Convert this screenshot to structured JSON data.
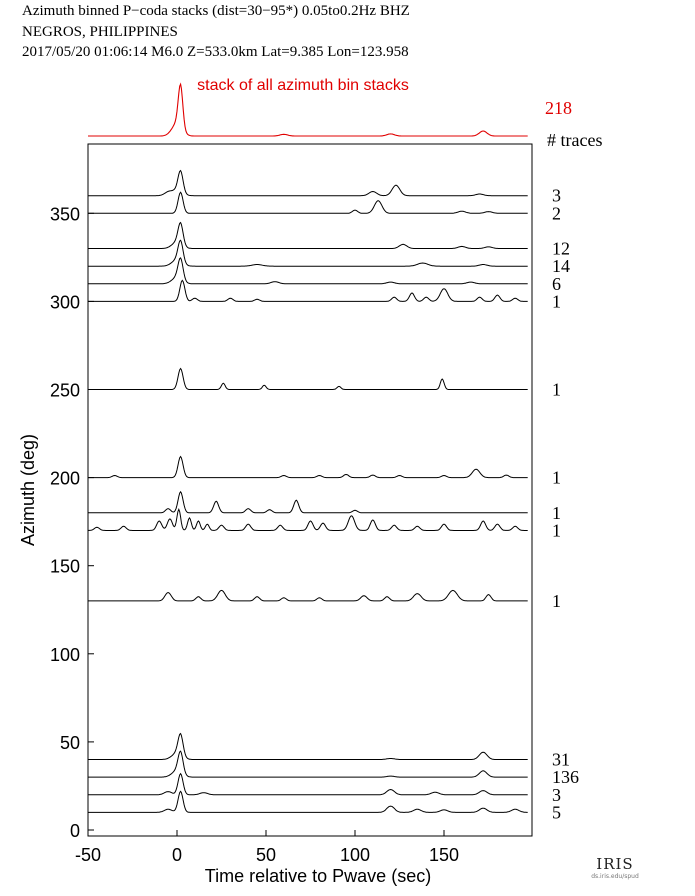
{
  "header": {
    "line1": "Azimuth binned P−coda stacks (dist=30−95*)  0.05to0.2Hz  BHZ",
    "line2": "NEGROS, PHILIPPINES",
    "line3": "2017/05/20  01:06:14  M6.0  Z=533.0km Lat=9.385 Lon=123.958"
  },
  "logo": {
    "brand": "IRIS",
    "url": "ds.iris.edu/spud"
  },
  "chart_data": {
    "type": "line",
    "xlabel": "Time relative to Pwave (sec)",
    "ylabel": "Azimuth (deg)",
    "xlim": [
      -50,
      197
    ],
    "ylim": [
      0,
      380
    ],
    "x_ticks": [
      -50,
      0,
      50,
      100,
      150
    ],
    "y_ticks": [
      0,
      50,
      100,
      150,
      200,
      250,
      300,
      350
    ],
    "stack": {
      "label": "stack of all azimuth bin stacks",
      "count": 218,
      "color": "#e00000",
      "peaks": [
        [
          2,
          1.0,
          1.8
        ],
        [
          0,
          0.3,
          4
        ],
        [
          172,
          0.12,
          3
        ],
        [
          120,
          0.05,
          3
        ],
        [
          60,
          0.04,
          3
        ]
      ]
    },
    "count_header": "# traces",
    "series": [
      {
        "azimuth": 360,
        "count": "3",
        "peaks": [
          [
            2,
            1.0,
            2
          ],
          [
            0,
            0.25,
            4
          ],
          [
            -5,
            0.15,
            3
          ],
          [
            110,
            0.2,
            3
          ],
          [
            123,
            0.5,
            3
          ],
          [
            170,
            0.08,
            3
          ]
        ]
      },
      {
        "azimuth": 350,
        "count": "2",
        "peaks": [
          [
            2,
            1.0,
            2
          ],
          [
            100,
            0.15,
            2
          ],
          [
            113,
            0.6,
            3
          ],
          [
            160,
            0.1,
            3
          ],
          [
            175,
            0.08,
            3
          ]
        ]
      },
      {
        "azimuth": 330,
        "count": "12",
        "peaks": [
          [
            2,
            1.0,
            2
          ],
          [
            0,
            0.3,
            4
          ],
          [
            127,
            0.2,
            3
          ],
          [
            160,
            0.1,
            3
          ],
          [
            175,
            0.08,
            3
          ]
        ]
      },
      {
        "azimuth": 320,
        "count": "14",
        "peaks": [
          [
            2,
            1.0,
            2
          ],
          [
            0,
            0.3,
            4
          ],
          [
            45,
            0.08,
            4
          ],
          [
            138,
            0.15,
            4
          ],
          [
            172,
            0.08,
            3
          ]
        ]
      },
      {
        "azimuth": 310,
        "count": "6",
        "peaks": [
          [
            2,
            1.0,
            2
          ],
          [
            0,
            0.3,
            4
          ],
          [
            55,
            0.1,
            3
          ],
          [
            120,
            0.08,
            3
          ],
          [
            165,
            0.08,
            3
          ]
        ]
      },
      {
        "azimuth": 300,
        "count": "1",
        "peaks": [
          [
            3,
            1.0,
            2
          ],
          [
            10,
            0.15,
            2
          ],
          [
            30,
            0.15,
            2
          ],
          [
            45,
            0.1,
            2
          ],
          [
            122,
            0.2,
            2
          ],
          [
            132,
            0.4,
            2
          ],
          [
            140,
            0.2,
            2
          ],
          [
            150,
            0.6,
            3
          ],
          [
            170,
            0.2,
            2
          ],
          [
            180,
            0.3,
            2
          ],
          [
            190,
            0.15,
            2
          ]
        ]
      },
      {
        "azimuth": 250,
        "count": "1",
        "peaks": [
          [
            2,
            1.0,
            2
          ],
          [
            26,
            0.3,
            1.5
          ],
          [
            49,
            0.2,
            1.5
          ],
          [
            91,
            0.15,
            1.5
          ],
          [
            149,
            0.5,
            1.5
          ]
        ]
      },
      {
        "azimuth": 200,
        "count": "1",
        "peaks": [
          [
            2,
            1.0,
            2
          ],
          [
            -35,
            0.1,
            2
          ],
          [
            60,
            0.1,
            2
          ],
          [
            80,
            0.1,
            2
          ],
          [
            95,
            0.15,
            2
          ],
          [
            110,
            0.12,
            2
          ],
          [
            125,
            0.1,
            2
          ],
          [
            150,
            0.1,
            2
          ],
          [
            168,
            0.4,
            3
          ],
          [
            185,
            0.12,
            2
          ]
        ]
      },
      {
        "azimuth": 180,
        "count": "1",
        "peaks": [
          [
            2,
            1.0,
            2
          ],
          [
            -5,
            0.2,
            2
          ],
          [
            22,
            0.55,
            2
          ],
          [
            40,
            0.2,
            2
          ],
          [
            52,
            0.15,
            2
          ],
          [
            67,
            0.6,
            2
          ],
          [
            100,
            0.12,
            2
          ]
        ]
      },
      {
        "azimuth": 170,
        "count": "1",
        "peaks": [
          [
            -45,
            0.15,
            2
          ],
          [
            -30,
            0.2,
            2
          ],
          [
            -10,
            0.45,
            2
          ],
          [
            -4,
            0.55,
            2
          ],
          [
            1,
            1.0,
            1.5
          ],
          [
            7,
            0.6,
            1.5
          ],
          [
            12,
            0.45,
            1.5
          ],
          [
            17,
            0.3,
            1.5
          ],
          [
            25,
            0.25,
            2
          ],
          [
            40,
            0.3,
            2
          ],
          [
            58,
            0.25,
            2
          ],
          [
            75,
            0.45,
            2
          ],
          [
            82,
            0.35,
            2
          ],
          [
            98,
            0.7,
            2.5
          ],
          [
            110,
            0.5,
            2
          ],
          [
            122,
            0.25,
            2
          ],
          [
            135,
            0.2,
            2
          ],
          [
            150,
            0.3,
            2
          ],
          [
            172,
            0.45,
            2
          ],
          [
            180,
            0.3,
            2
          ],
          [
            190,
            0.2,
            2
          ]
        ]
      },
      {
        "azimuth": 130,
        "count": "1",
        "peaks": [
          [
            -5,
            0.4,
            2.5
          ],
          [
            12,
            0.2,
            2
          ],
          [
            25,
            0.5,
            3
          ],
          [
            45,
            0.2,
            2
          ],
          [
            60,
            0.15,
            2
          ],
          [
            80,
            0.15,
            2
          ],
          [
            105,
            0.25,
            2.5
          ],
          [
            118,
            0.2,
            2
          ],
          [
            135,
            0.35,
            3
          ],
          [
            155,
            0.5,
            3.5
          ],
          [
            175,
            0.3,
            2
          ]
        ]
      },
      {
        "azimuth": 40,
        "count": "31",
        "peaks": [
          [
            2,
            1.0,
            2
          ],
          [
            0,
            0.3,
            4
          ],
          [
            120,
            0.05,
            3
          ],
          [
            172,
            0.35,
            3
          ]
        ]
      },
      {
        "azimuth": 30,
        "count": "136",
        "peaks": [
          [
            2,
            1.0,
            2
          ],
          [
            0,
            0.3,
            4
          ],
          [
            120,
            0.05,
            3
          ],
          [
            172,
            0.3,
            3
          ]
        ]
      },
      {
        "azimuth": 20,
        "count": "3",
        "peaks": [
          [
            2,
            1.0,
            2
          ],
          [
            -5,
            0.15,
            3
          ],
          [
            15,
            0.1,
            3
          ],
          [
            120,
            0.25,
            3
          ],
          [
            145,
            0.12,
            3
          ],
          [
            172,
            0.2,
            3
          ]
        ]
      },
      {
        "azimuth": 10,
        "count": "5",
        "peaks": [
          [
            2,
            1.0,
            2
          ],
          [
            -5,
            0.15,
            3
          ],
          [
            120,
            0.3,
            3
          ],
          [
            135,
            0.15,
            3
          ],
          [
            150,
            0.12,
            3
          ],
          [
            172,
            0.2,
            3
          ],
          [
            190,
            0.15,
            3
          ]
        ]
      }
    ]
  }
}
